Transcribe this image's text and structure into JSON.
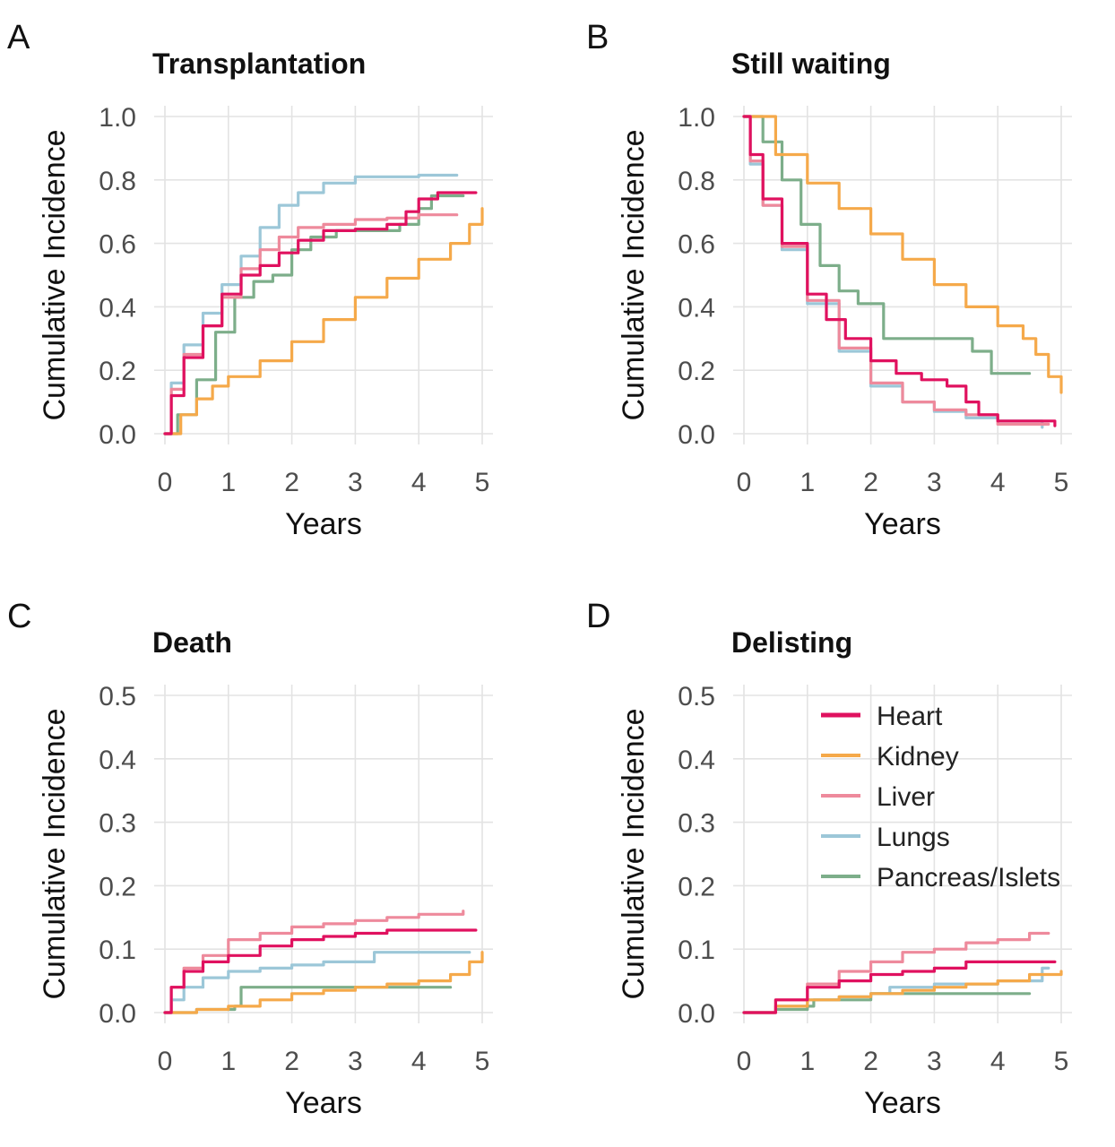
{
  "legend": {
    "items": [
      {
        "name": "Heart",
        "color": "#e0115f"
      },
      {
        "name": "Kidney",
        "color": "#f5a94a"
      },
      {
        "name": "Liver",
        "color": "#ee8a9c"
      },
      {
        "name": "Lungs",
        "color": "#9cc7d8"
      },
      {
        "name": "Pancreas/Islets",
        "color": "#7dae8a"
      }
    ]
  },
  "chart_data": [
    {
      "type": "line",
      "letter": "A",
      "title": "Transplantation",
      "xlabel": "Years",
      "ylabel": "Cumulative Incidence",
      "xlim": [
        0,
        5
      ],
      "ylim": [
        0,
        1
      ],
      "xticks": [
        "0",
        "1",
        "2",
        "3",
        "4",
        "5"
      ],
      "yticks": [
        "0.0",
        "0.2",
        "0.4",
        "0.6",
        "0.8",
        "1.0"
      ],
      "series": [
        {
          "name": "Lungs",
          "x": [
            0,
            0.1,
            0.3,
            0.6,
            0.9,
            1.2,
            1.5,
            1.8,
            2.1,
            2.5,
            3.0,
            3.5,
            4.0,
            4.6
          ],
          "y": [
            0,
            0.16,
            0.28,
            0.38,
            0.47,
            0.56,
            0.65,
            0.72,
            0.76,
            0.79,
            0.81,
            0.81,
            0.815,
            0.815
          ]
        },
        {
          "name": "Liver",
          "x": [
            0,
            0.1,
            0.3,
            0.6,
            0.9,
            1.2,
            1.5,
            1.8,
            2.1,
            2.5,
            3.0,
            3.5,
            4.0,
            4.6
          ],
          "y": [
            0,
            0.14,
            0.25,
            0.34,
            0.43,
            0.52,
            0.58,
            0.62,
            0.65,
            0.66,
            0.675,
            0.68,
            0.69,
            0.69
          ]
        },
        {
          "name": "Heart",
          "x": [
            0,
            0.1,
            0.3,
            0.6,
            0.9,
            1.2,
            1.5,
            1.8,
            2.1,
            2.5,
            3.0,
            3.5,
            3.8,
            4.0,
            4.3,
            4.9
          ],
          "y": [
            0,
            0.12,
            0.24,
            0.34,
            0.44,
            0.5,
            0.53,
            0.57,
            0.61,
            0.64,
            0.645,
            0.66,
            0.7,
            0.74,
            0.76,
            0.76
          ]
        },
        {
          "name": "Pancreas/Islets",
          "x": [
            0,
            0.2,
            0.5,
            0.8,
            1.1,
            1.4,
            1.7,
            2.0,
            2.3,
            2.7,
            3.0,
            3.4,
            3.7,
            4.0,
            4.2,
            4.7
          ],
          "y": [
            0,
            0.06,
            0.17,
            0.32,
            0.43,
            0.48,
            0.5,
            0.58,
            0.62,
            0.64,
            0.64,
            0.64,
            0.66,
            0.71,
            0.75,
            0.75
          ]
        },
        {
          "name": "Kidney",
          "x": [
            0,
            0.25,
            0.5,
            0.75,
            1.0,
            1.5,
            2.0,
            2.5,
            3.0,
            3.5,
            4.0,
            4.5,
            4.8,
            5.0
          ],
          "y": [
            0,
            0.06,
            0.11,
            0.15,
            0.18,
            0.23,
            0.29,
            0.36,
            0.43,
            0.49,
            0.55,
            0.6,
            0.66,
            0.71
          ]
        }
      ]
    },
    {
      "type": "line",
      "letter": "B",
      "title": "Still waiting",
      "xlabel": "Years",
      "ylabel": "Cumulative Incidence",
      "xlim": [
        0,
        5
      ],
      "ylim": [
        0,
        1
      ],
      "xticks": [
        "0",
        "1",
        "2",
        "3",
        "4",
        "5"
      ],
      "yticks": [
        "0.0",
        "0.2",
        "0.4",
        "0.6",
        "0.8",
        "1.0"
      ],
      "series": [
        {
          "name": "Lungs",
          "x": [
            0,
            0.1,
            0.3,
            0.6,
            1.0,
            1.5,
            2.0,
            2.5,
            3.0,
            3.5,
            4.0,
            4.7
          ],
          "y": [
            1.0,
            0.85,
            0.72,
            0.58,
            0.41,
            0.26,
            0.15,
            0.1,
            0.07,
            0.05,
            0.04,
            0.02
          ]
        },
        {
          "name": "Liver",
          "x": [
            0,
            0.1,
            0.3,
            0.6,
            1.0,
            1.5,
            2.0,
            2.5,
            3.0,
            3.5,
            4.0,
            4.8
          ],
          "y": [
            1.0,
            0.86,
            0.72,
            0.59,
            0.42,
            0.27,
            0.16,
            0.1,
            0.075,
            0.06,
            0.03,
            0.03
          ]
        },
        {
          "name": "Heart",
          "x": [
            0,
            0.1,
            0.3,
            0.6,
            1.0,
            1.3,
            1.6,
            2.0,
            2.4,
            2.8,
            3.2,
            3.5,
            3.7,
            4.0,
            4.9
          ],
          "y": [
            1.0,
            0.88,
            0.74,
            0.6,
            0.44,
            0.36,
            0.3,
            0.23,
            0.19,
            0.17,
            0.15,
            0.1,
            0.06,
            0.04,
            0.025
          ]
        },
        {
          "name": "Pancreas/Islets",
          "x": [
            0,
            0.3,
            0.6,
            0.9,
            1.2,
            1.5,
            1.8,
            2.2,
            2.7,
            3.2,
            3.6,
            3.9,
            4.2,
            4.5
          ],
          "y": [
            1.0,
            0.92,
            0.8,
            0.66,
            0.53,
            0.45,
            0.41,
            0.3,
            0.3,
            0.3,
            0.26,
            0.19,
            0.19,
            0.19
          ]
        },
        {
          "name": "Kidney",
          "x": [
            0,
            0.5,
            1.0,
            1.5,
            2.0,
            2.5,
            3.0,
            3.5,
            4.0,
            4.4,
            4.6,
            4.8,
            5.0
          ],
          "y": [
            1.0,
            0.88,
            0.79,
            0.71,
            0.63,
            0.55,
            0.47,
            0.4,
            0.34,
            0.3,
            0.25,
            0.18,
            0.13
          ]
        }
      ]
    },
    {
      "type": "line",
      "letter": "C",
      "title": "Death",
      "xlabel": "Years",
      "ylabel": "Cumulative Incidence",
      "xlim": [
        0,
        5
      ],
      "ylim": [
        0,
        0.5
      ],
      "xticks": [
        "0",
        "1",
        "2",
        "3",
        "4",
        "5"
      ],
      "yticks": [
        "0.0",
        "0.1",
        "0.2",
        "0.3",
        "0.4",
        "0.5"
      ],
      "series": [
        {
          "name": "Liver",
          "x": [
            0,
            0.1,
            0.3,
            0.6,
            1.0,
            1.5,
            2.0,
            2.5,
            3.0,
            3.5,
            4.0,
            4.7
          ],
          "y": [
            0,
            0.04,
            0.07,
            0.09,
            0.115,
            0.125,
            0.135,
            0.14,
            0.145,
            0.15,
            0.155,
            0.16
          ]
        },
        {
          "name": "Heart",
          "x": [
            0,
            0.1,
            0.3,
            0.6,
            1.0,
            1.5,
            2.0,
            2.5,
            3.0,
            3.5,
            4.0,
            4.9
          ],
          "y": [
            0,
            0.04,
            0.065,
            0.08,
            0.09,
            0.105,
            0.115,
            0.12,
            0.125,
            0.13,
            0.13,
            0.13
          ]
        },
        {
          "name": "Lungs",
          "x": [
            0,
            0.1,
            0.3,
            0.6,
            1.0,
            1.5,
            2.0,
            2.5,
            3.0,
            3.3,
            4.0,
            4.8
          ],
          "y": [
            0,
            0.02,
            0.04,
            0.055,
            0.065,
            0.07,
            0.075,
            0.08,
            0.08,
            0.095,
            0.095,
            0.095
          ]
        },
        {
          "name": "Kidney",
          "x": [
            0,
            0.5,
            1.0,
            1.5,
            2.0,
            2.5,
            3.0,
            3.5,
            4.0,
            4.5,
            4.8,
            5.0
          ],
          "y": [
            0,
            0.005,
            0.01,
            0.02,
            0.03,
            0.035,
            0.04,
            0.045,
            0.05,
            0.06,
            0.08,
            0.095
          ]
        },
        {
          "name": "Pancreas/Islets",
          "x": [
            0,
            0.5,
            1.1,
            1.2,
            2.0,
            3.0,
            4.0,
            4.5
          ],
          "y": [
            0,
            0.005,
            0.01,
            0.04,
            0.04,
            0.04,
            0.04,
            0.04
          ]
        }
      ]
    },
    {
      "type": "line",
      "letter": "D",
      "title": "Delisting",
      "xlabel": "Years",
      "ylabel": "Cumulative Incidence",
      "xlim": [
        0,
        5
      ],
      "ylim": [
        0,
        0.5
      ],
      "xticks": [
        "0",
        "1",
        "2",
        "3",
        "4",
        "5"
      ],
      "yticks": [
        "0.0",
        "0.1",
        "0.2",
        "0.3",
        "0.4",
        "0.5"
      ],
      "legend": "top-right",
      "series": [
        {
          "name": "Liver",
          "x": [
            0,
            0.5,
            1.0,
            1.5,
            2.0,
            2.5,
            3.0,
            3.5,
            4.0,
            4.5,
            4.8
          ],
          "y": [
            0,
            0.02,
            0.045,
            0.065,
            0.08,
            0.095,
            0.1,
            0.11,
            0.115,
            0.125,
            0.125
          ]
        },
        {
          "name": "Heart",
          "x": [
            0,
            0.5,
            1.0,
            1.5,
            2.0,
            2.5,
            3.0,
            3.5,
            4.0,
            4.9
          ],
          "y": [
            0,
            0.02,
            0.04,
            0.05,
            0.06,
            0.065,
            0.07,
            0.08,
            0.08,
            0.08
          ]
        },
        {
          "name": "Kidney",
          "x": [
            0,
            0.5,
            1.0,
            1.5,
            2.0,
            2.5,
            3.0,
            3.5,
            4.0,
            4.5,
            5.0
          ],
          "y": [
            0,
            0.01,
            0.02,
            0.025,
            0.03,
            0.035,
            0.04,
            0.045,
            0.05,
            0.06,
            0.065
          ]
        },
        {
          "name": "Lungs",
          "x": [
            0,
            0.5,
            1.0,
            1.5,
            2.0,
            2.3,
            3.0,
            3.5,
            4.0,
            4.5,
            4.7,
            4.8
          ],
          "y": [
            0,
            0.01,
            0.02,
            0.025,
            0.03,
            0.04,
            0.045,
            0.045,
            0.05,
            0.05,
            0.07,
            0.07
          ]
        },
        {
          "name": "Pancreas/Islets",
          "x": [
            0,
            0.5,
            1.0,
            1.1,
            2.0,
            3.0,
            4.0,
            4.5
          ],
          "y": [
            0,
            0.005,
            0.01,
            0.02,
            0.03,
            0.03,
            0.03,
            0.03
          ]
        }
      ]
    }
  ]
}
